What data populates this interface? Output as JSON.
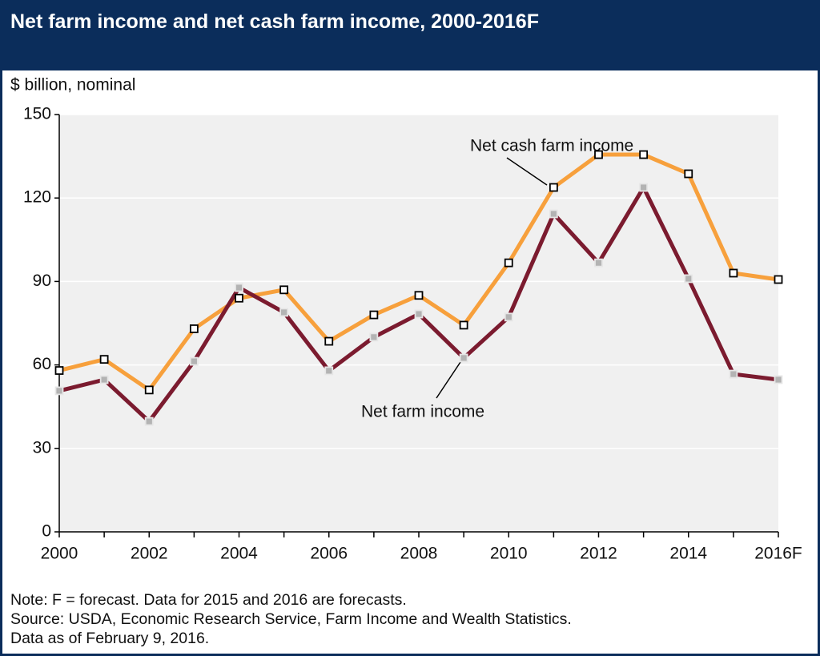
{
  "chart_data": {
    "type": "line",
    "title": "Net farm income and net cash farm income, 2000-2016F",
    "y_label": "$ billion, nominal",
    "categories": [
      "2000",
      null,
      "2002",
      null,
      "2004",
      null,
      "2006",
      null,
      "2008",
      null,
      "2010",
      null,
      "2012",
      null,
      "2014",
      null,
      "2016F"
    ],
    "series": [
      {
        "name": "Net cash farm income",
        "color": "#f7a03c",
        "values": [
          58,
          62,
          51,
          73,
          84,
          87,
          68.5,
          78,
          85,
          74.3,
          96.7,
          123.8,
          135.6,
          135.6,
          128.7,
          93,
          90.7
        ]
      },
      {
        "name": "Net farm income",
        "color": "#7b1b2f",
        "values": [
          50.7,
          54.7,
          39.7,
          61.3,
          87.8,
          78.9,
          57.9,
          70,
          78.3,
          62.5,
          77.2,
          114.3,
          96.7,
          123.8,
          91,
          56.7,
          54.7
        ]
      }
    ],
    "ylim": [
      0,
      150
    ],
    "yticks": [
      0,
      30,
      60,
      90,
      120,
      150
    ],
    "grid": true,
    "notes": [
      "Note: F = forecast. Data for 2015 and 2016 are forecasts.",
      "Source: USDA, Economic Research Service, Farm Income and Wealth Statistics.",
      "Data as of February 9, 2016."
    ]
  }
}
